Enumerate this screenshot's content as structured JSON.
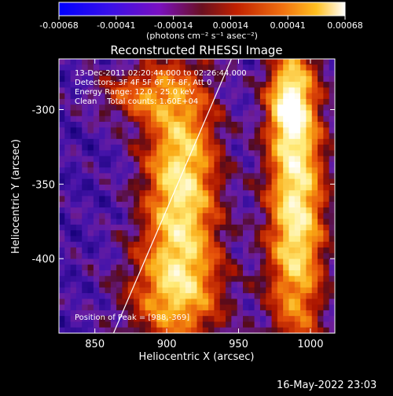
{
  "colorbar": {
    "ticks": [
      "-0.00068",
      "-0.00041",
      "-0.00014",
      "0.00014",
      "0.00041",
      "0.00068"
    ],
    "units": "(photons cm⁻² s⁻¹ asec⁻²)",
    "colors": [
      "#0000ff",
      "#5a00d8",
      "#8a18b8",
      "#c84a20",
      "#f08010",
      "#ffd020",
      "#ffffff"
    ]
  },
  "chart_data": {
    "type": "heatmap",
    "title": "Reconstructed RHESSI Image",
    "xlabel": "Heliocentric X (arcsec)",
    "ylabel": "Heliocentric Y (arcsec)",
    "xlim": [
      825,
      1017
    ],
    "ylim": [
      -450,
      -266
    ],
    "xticks": [
      "850",
      "900",
      "950",
      "1000"
    ],
    "yticks": [
      "-300",
      "-350",
      "-400"
    ],
    "xtick_values": [
      850,
      900,
      950,
      1000
    ],
    "ytick_values": [
      -300,
      -350,
      -400
    ],
    "peak": [
      988,
      -369
    ],
    "annotations": [
      "13-Dec-2011 02:20:44.000 to 02:26:44.000",
      "Detectors: 3F 4F 5F 6F 7F 8F, Att 0",
      "Energy Range: 12.0 - 25.0 keV",
      "Clean    Total counts: 1.60E+04"
    ],
    "peak_label": "Position of Peak = [988,-369]",
    "limb_line": {
      "x": [
        863,
        945
      ],
      "y": [
        -450,
        -266
      ]
    },
    "sources": [
      {
        "x": 910,
        "y": -350,
        "sigx": 18,
        "sigy": 55,
        "amp": 1.0
      },
      {
        "x": 990,
        "y": -365,
        "sigx": 14,
        "sigy": 70,
        "amp": 1.05
      },
      {
        "x": 985,
        "y": -295,
        "sigx": 10,
        "sigy": 20,
        "amp": 0.7
      },
      {
        "x": 880,
        "y": -290,
        "sigx": 20,
        "sigy": 12,
        "amp": 0.5
      },
      {
        "x": 905,
        "y": -425,
        "sigx": 25,
        "sigy": 25,
        "amp": 0.55
      }
    ]
  },
  "timestamp": "16-May-2022 23:03"
}
